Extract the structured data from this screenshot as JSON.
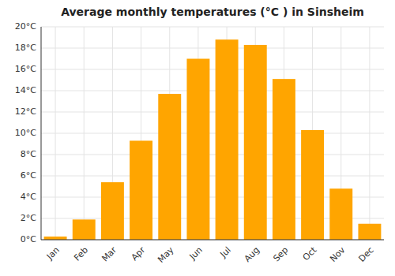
{
  "chart_data": {
    "type": "bar",
    "title": "Average monthly temperatures (°C ) in Sinsheim",
    "categories": [
      "Jan",
      "Feb",
      "Mar",
      "Apr",
      "May",
      "Jun",
      "Jul",
      "Aug",
      "Sep",
      "Oct",
      "Nov",
      "Dec"
    ],
    "values": [
      0.3,
      1.9,
      5.4,
      9.3,
      13.7,
      17.0,
      18.8,
      18.3,
      15.1,
      10.3,
      4.8,
      1.5
    ],
    "color": "#FFA500",
    "ylim": [
      0,
      20
    ],
    "yticks": [
      {
        "value": 0,
        "label": "0°C"
      },
      {
        "value": 2,
        "label": "2°C"
      },
      {
        "value": 4,
        "label": "4°C"
      },
      {
        "value": 6,
        "label": "6°C"
      },
      {
        "value": 8,
        "label": "8°C"
      },
      {
        "value": 10,
        "label": "10°C"
      },
      {
        "value": 12,
        "label": "12°C"
      },
      {
        "value": 14,
        "label": "14°C"
      },
      {
        "value": 16,
        "label": "16°C"
      },
      {
        "value": 18,
        "label": "18°C"
      },
      {
        "value": 20,
        "label": "20°C"
      }
    ],
    "grid": true
  }
}
